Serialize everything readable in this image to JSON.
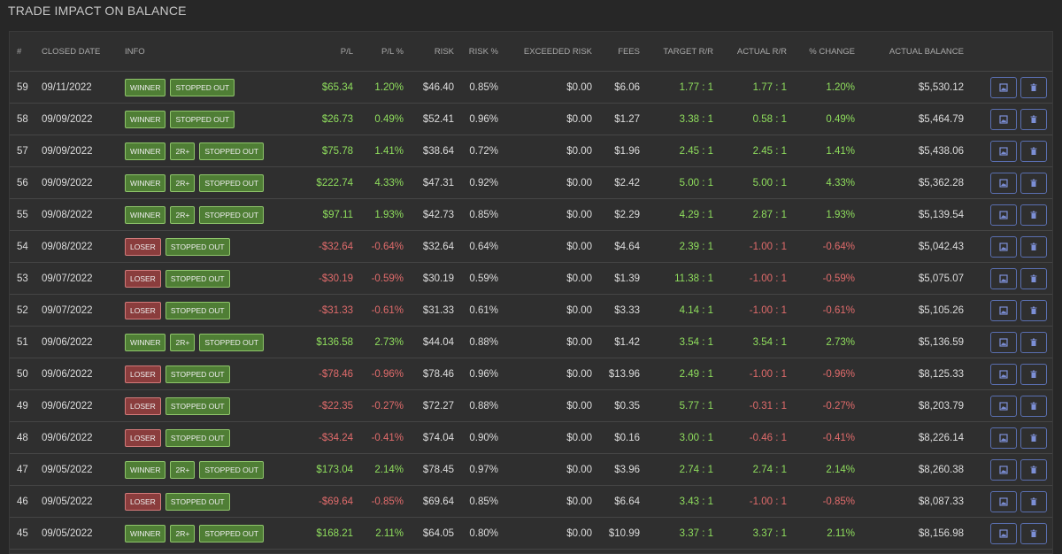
{
  "header": {
    "title": "TRADE IMPACT ON BALANCE"
  },
  "table": {
    "columns": [
      "#",
      "CLOSED DATE",
      "INFO",
      "P/L",
      "P/L %",
      "RISK",
      "RISK %",
      "EXCEEDED RISK",
      "FEES",
      "TARGET R/R",
      "ACTUAL R/R",
      "% CHANGE",
      "ACTUAL BALANCE"
    ],
    "rows": [
      [
        "59",
        "09/11/2022",
        [
          "WINNER",
          "STOPPED OUT"
        ],
        "$65.34",
        "1.20%",
        "$46.40",
        "0.85%",
        "$0.00",
        "$6.06",
        "1.77 : 1",
        "1.77 : 1",
        "1.20%",
        "$5,530.12"
      ],
      [
        "58",
        "09/09/2022",
        [
          "WINNER",
          "STOPPED OUT"
        ],
        "$26.73",
        "0.49%",
        "$52.41",
        "0.96%",
        "$0.00",
        "$1.27",
        "3.38 : 1",
        "0.58 : 1",
        "0.49%",
        "$5,464.79"
      ],
      [
        "57",
        "09/09/2022",
        [
          "WINNER",
          "2R+",
          "STOPPED OUT"
        ],
        "$75.78",
        "1.41%",
        "$38.64",
        "0.72%",
        "$0.00",
        "$1.96",
        "2.45 : 1",
        "2.45 : 1",
        "1.41%",
        "$5,438.06"
      ],
      [
        "56",
        "09/09/2022",
        [
          "WINNER",
          "2R+",
          "STOPPED OUT"
        ],
        "$222.74",
        "4.33%",
        "$47.31",
        "0.92%",
        "$0.00",
        "$2.42",
        "5.00 : 1",
        "5.00 : 1",
        "4.33%",
        "$5,362.28"
      ],
      [
        "55",
        "09/08/2022",
        [
          "WINNER",
          "2R+",
          "STOPPED OUT"
        ],
        "$97.11",
        "1.93%",
        "$42.73",
        "0.85%",
        "$0.00",
        "$2.29",
        "4.29 : 1",
        "2.87 : 1",
        "1.93%",
        "$5,139.54"
      ],
      [
        "54",
        "09/08/2022",
        [
          "LOSER",
          "STOPPED OUT"
        ],
        "-$32.64",
        "-0.64%",
        "$32.64",
        "0.64%",
        "$0.00",
        "$4.64",
        "2.39 : 1",
        "-1.00 : 1",
        "-0.64%",
        "$5,042.43"
      ],
      [
        "53",
        "09/07/2022",
        [
          "LOSER",
          "STOPPED OUT"
        ],
        "-$30.19",
        "-0.59%",
        "$30.19",
        "0.59%",
        "$0.00",
        "$1.39",
        "11.38 : 1",
        "-1.00 : 1",
        "-0.59%",
        "$5,075.07"
      ],
      [
        "52",
        "09/07/2022",
        [
          "LOSER",
          "STOPPED OUT"
        ],
        "-$31.33",
        "-0.61%",
        "$31.33",
        "0.61%",
        "$0.00",
        "$3.33",
        "4.14 : 1",
        "-1.00 : 1",
        "-0.61%",
        "$5,105.26"
      ],
      [
        "51",
        "09/06/2022",
        [
          "WINNER",
          "2R+",
          "STOPPED OUT"
        ],
        "$136.58",
        "2.73%",
        "$44.04",
        "0.88%",
        "$0.00",
        "$1.42",
        "3.54 : 1",
        "3.54 : 1",
        "2.73%",
        "$5,136.59"
      ],
      [
        "50",
        "09/06/2022",
        [
          "LOSER",
          "STOPPED OUT"
        ],
        "-$78.46",
        "-0.96%",
        "$78.46",
        "0.96%",
        "$0.00",
        "$13.96",
        "2.49 : 1",
        "-1.00 : 1",
        "-0.96%",
        "$8,125.33"
      ],
      [
        "49",
        "09/06/2022",
        [
          "LOSER",
          "STOPPED OUT"
        ],
        "-$22.35",
        "-0.27%",
        "$72.27",
        "0.88%",
        "$0.00",
        "$0.35",
        "5.77 : 1",
        "-0.31 : 1",
        "-0.27%",
        "$8,203.79"
      ],
      [
        "48",
        "09/06/2022",
        [
          "LOSER",
          "STOPPED OUT"
        ],
        "-$34.24",
        "-0.41%",
        "$74.04",
        "0.90%",
        "$0.00",
        "$0.16",
        "3.00 : 1",
        "-0.46 : 1",
        "-0.41%",
        "$8,226.14"
      ],
      [
        "47",
        "09/05/2022",
        [
          "WINNER",
          "2R+",
          "STOPPED OUT"
        ],
        "$173.04",
        "2.14%",
        "$78.45",
        "0.97%",
        "$0.00",
        "$3.96",
        "2.74 : 1",
        "2.74 : 1",
        "2.14%",
        "$8,260.38"
      ],
      [
        "46",
        "09/05/2022",
        [
          "LOSER",
          "STOPPED OUT"
        ],
        "-$69.64",
        "-0.85%",
        "$69.64",
        "0.85%",
        "$0.00",
        "$6.64",
        "3.43 : 1",
        "-1.00 : 1",
        "-0.85%",
        "$8,087.33"
      ],
      [
        "45",
        "09/05/2022",
        [
          "WINNER",
          "2R+",
          "STOPPED OUT"
        ],
        "$168.21",
        "2.11%",
        "$64.05",
        "0.80%",
        "$0.00",
        "$10.99",
        "3.37 : 1",
        "3.37 : 1",
        "2.11%",
        "$8,156.98"
      ]
    ]
  }
}
